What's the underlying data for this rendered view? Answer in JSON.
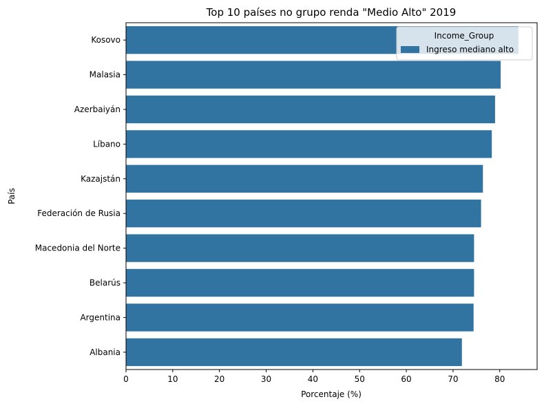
{
  "chart_data": {
    "type": "bar",
    "orientation": "horizontal",
    "title": "Top 10 países no grupo renda \"Medio Alto\" 2019",
    "xlabel": "Porcentaje (%)",
    "ylabel": "País",
    "xlim": [
      0,
      88
    ],
    "xticks": [
      0,
      10,
      20,
      30,
      40,
      50,
      60,
      70,
      80
    ],
    "categories": [
      "Kosovo",
      "Malasia",
      "Azerbaiyán",
      "Líbano",
      "Kazajstán",
      "Federación de Rusia",
      "Macedonia del Norte",
      "Belarús",
      "Argentina",
      "Albania"
    ],
    "series": [
      {
        "name": "Ingreso mediano alto",
        "values": [
          84.0,
          80.2,
          79.0,
          78.3,
          76.4,
          76.0,
          74.5,
          74.5,
          74.4,
          71.9
        ],
        "color": "#3274a1"
      }
    ],
    "legend": {
      "title": "Income_Group",
      "placement": "top-right"
    },
    "grid": false
  }
}
